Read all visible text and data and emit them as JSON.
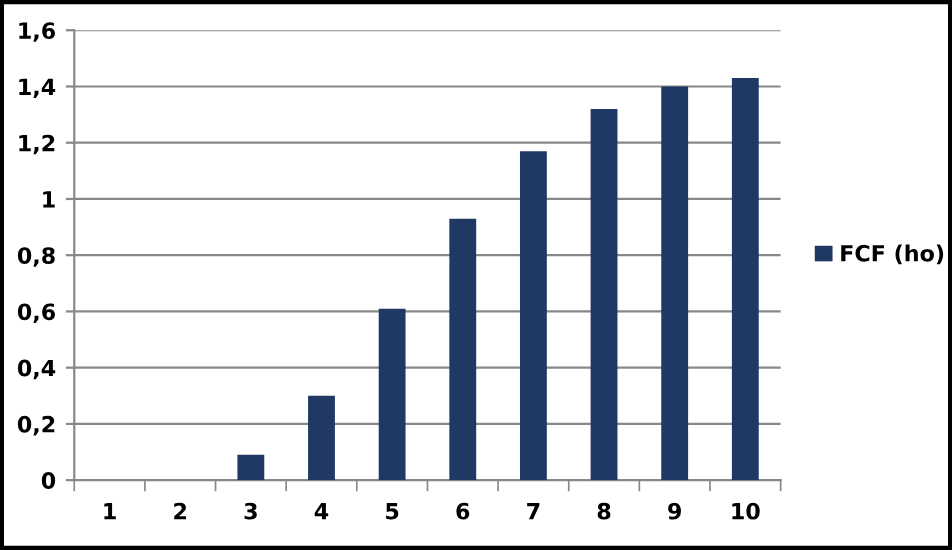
{
  "chart_data": {
    "type": "bar",
    "categories": [
      "1",
      "2",
      "3",
      "4",
      "5",
      "6",
      "7",
      "8",
      "9",
      "10"
    ],
    "series": [
      {
        "name": "FCF (ho)",
        "color": "#1f3864",
        "values": [
          0,
          0,
          0.09,
          0.3,
          0.61,
          0.93,
          1.17,
          1.32,
          1.4,
          1.43
        ]
      }
    ],
    "ylim": [
      0,
      1.6
    ],
    "yticks": [
      0,
      {
        "value": 0.2,
        "label": "0,2"
      },
      {
        "value": 0.4,
        "label": "0,4"
      },
      {
        "value": 0.6,
        "label": "0,6"
      },
      {
        "value": 0.8,
        "label": "0,8"
      },
      1,
      {
        "value": 1.2,
        "label": "1,2"
      },
      {
        "value": 1.4,
        "label": "1,4"
      },
      {
        "value": 1.6,
        "label": "1,6"
      }
    ],
    "grid": "y",
    "legend": "right"
  }
}
